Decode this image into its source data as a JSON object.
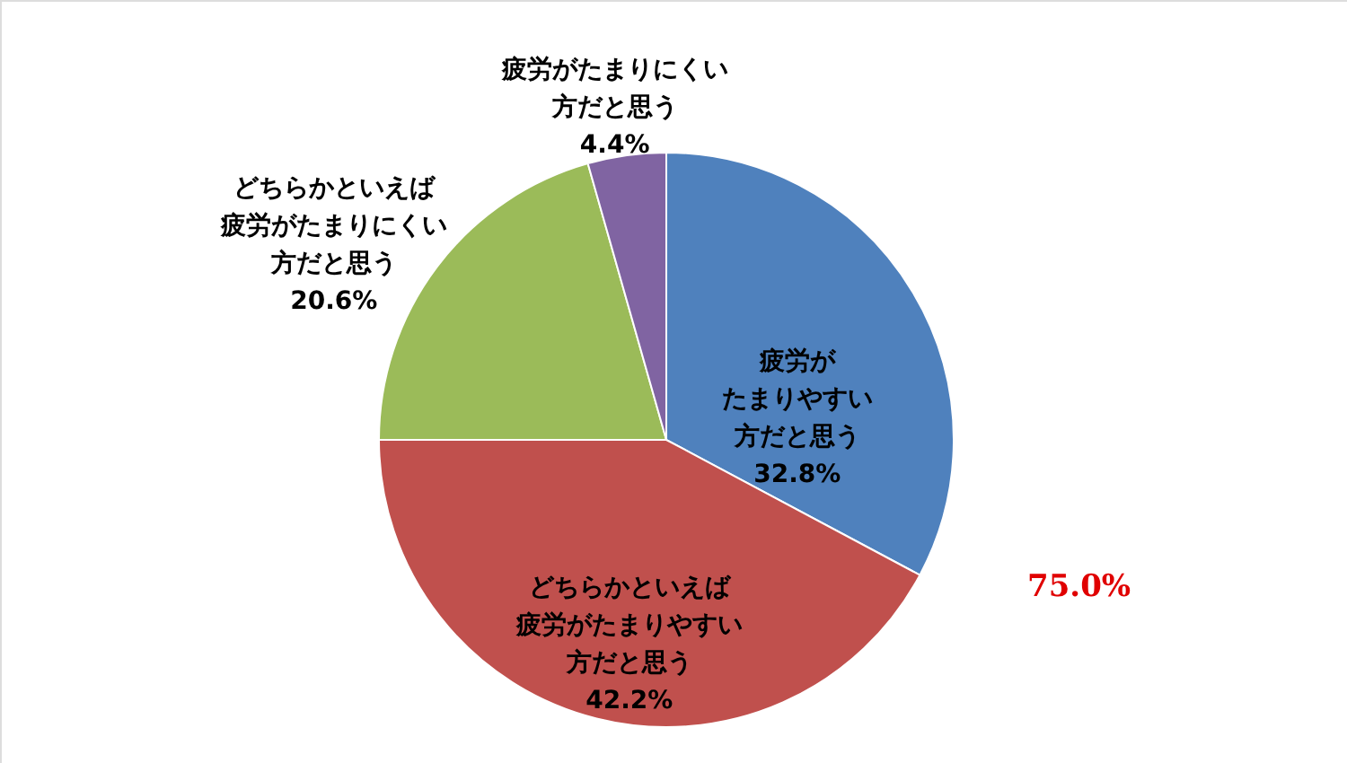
{
  "chart_data": {
    "type": "pie",
    "categories": [
      "疲労がたまりやすい方だと思う",
      "どちらかといえば疲労がたまりやすい方だと思う",
      "どちらかといえば疲労がたまりにくい方だと思う",
      "疲労がたまりにくい方だと思う"
    ],
    "values": [
      32.8,
      42.2,
      20.6,
      4.4
    ],
    "value_labels": [
      "32.8%",
      "42.2%",
      "20.6%",
      "4.4%"
    ],
    "colors": [
      "#4f81bd",
      "#c0504d",
      "#9bbb59",
      "#8064a2"
    ],
    "annotations": [
      "75.0%"
    ]
  }
}
